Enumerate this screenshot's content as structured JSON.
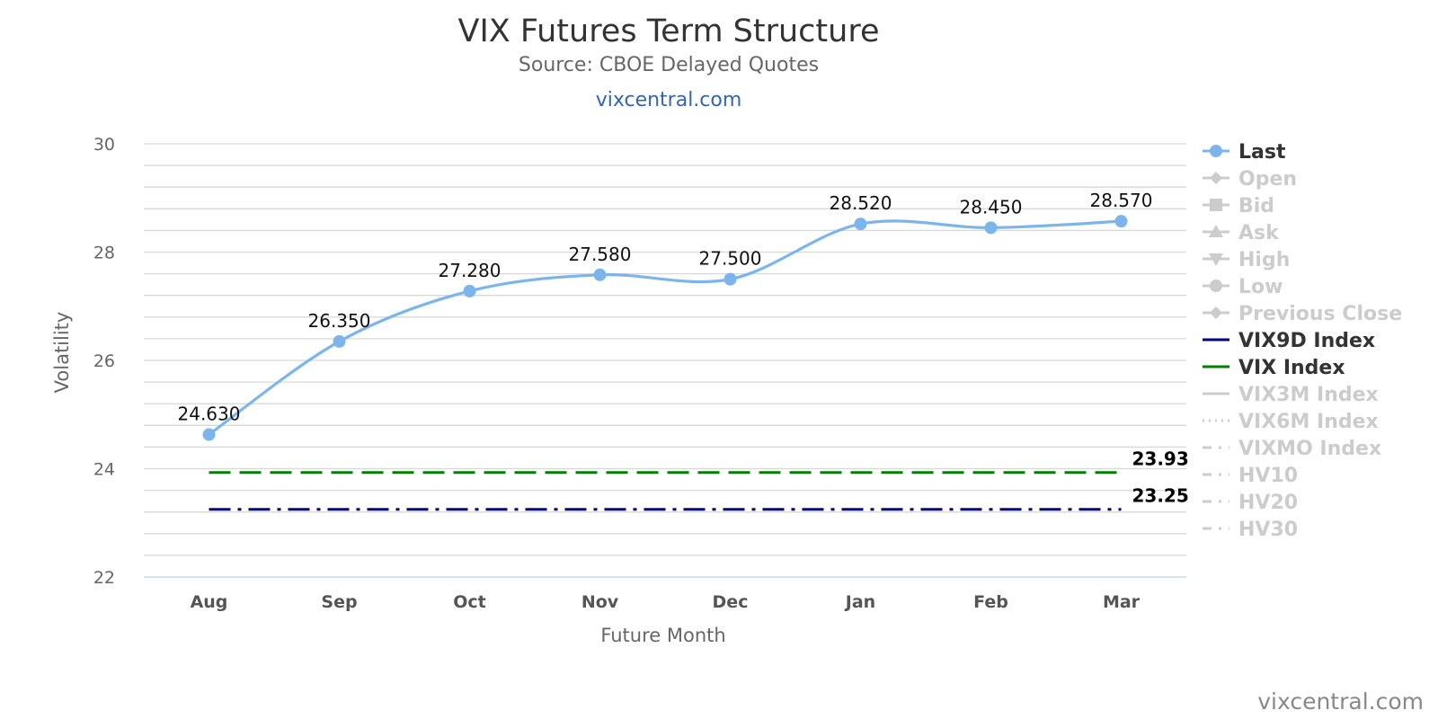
{
  "title": "VIX Futures Term Structure",
  "subtitle": "Source: CBOE Delayed Quotes",
  "link": "vixcentral.com",
  "credits": "vixcentral.com",
  "colors": {
    "last": "#7cb5ec",
    "vix9d": "#000080",
    "vix": "#008000",
    "grid": "#d8d8d8",
    "legend_active": "#333333",
    "legend_inactive": "#cccccc"
  },
  "chart_data": {
    "type": "line",
    "title": "VIX Futures Term Structure",
    "subtitle": "Source: CBOE Delayed Quotes",
    "xlabel": "Future Month",
    "ylabel": "Volatility",
    "categories": [
      "Aug",
      "Sep",
      "Oct",
      "Nov",
      "Dec",
      "Jan",
      "Feb",
      "Mar"
    ],
    "ylim": [
      22,
      30
    ],
    "yticks": [
      22,
      24,
      26,
      28,
      30
    ],
    "grid": true,
    "legend_position": "right",
    "series": [
      {
        "name": "Last",
        "values": [
          24.63,
          26.35,
          27.28,
          27.58,
          27.5,
          28.52,
          28.45,
          28.57
        ],
        "labels": [
          "24.630",
          "26.350",
          "27.280",
          "27.580",
          "27.500",
          "28.520",
          "28.450",
          "28.570"
        ]
      },
      {
        "name": "VIX Index",
        "constant": 23.93,
        "label": "23.93",
        "style": "long-dash"
      },
      {
        "name": "VIX9D Index",
        "constant": 23.25,
        "label": "23.25",
        "style": "dash-dot"
      }
    ],
    "legend": [
      {
        "name": "Last",
        "active": true,
        "symbol": "circle"
      },
      {
        "name": "Open",
        "active": false,
        "symbol": "diamond"
      },
      {
        "name": "Bid",
        "active": false,
        "symbol": "square"
      },
      {
        "name": "Ask",
        "active": false,
        "symbol": "triangle"
      },
      {
        "name": "High",
        "active": false,
        "symbol": "triangle-down"
      },
      {
        "name": "Low",
        "active": false,
        "symbol": "circle"
      },
      {
        "name": "Previous Close",
        "active": false,
        "symbol": "diamond"
      },
      {
        "name": "VIX9D Index",
        "active": true,
        "symbol": "line",
        "color": "#000080"
      },
      {
        "name": "VIX Index",
        "active": true,
        "symbol": "line",
        "color": "#008000"
      },
      {
        "name": "VIX3M Index",
        "active": false,
        "symbol": "line"
      },
      {
        "name": "VIX6M Index",
        "active": false,
        "symbol": "dotted"
      },
      {
        "name": "VIXMO Index",
        "active": false,
        "symbol": "dashdot"
      },
      {
        "name": "HV10",
        "active": false,
        "symbol": "dashdot"
      },
      {
        "name": "HV20",
        "active": false,
        "symbol": "dashdot"
      },
      {
        "name": "HV30",
        "active": false,
        "symbol": "dashdot"
      }
    ]
  }
}
